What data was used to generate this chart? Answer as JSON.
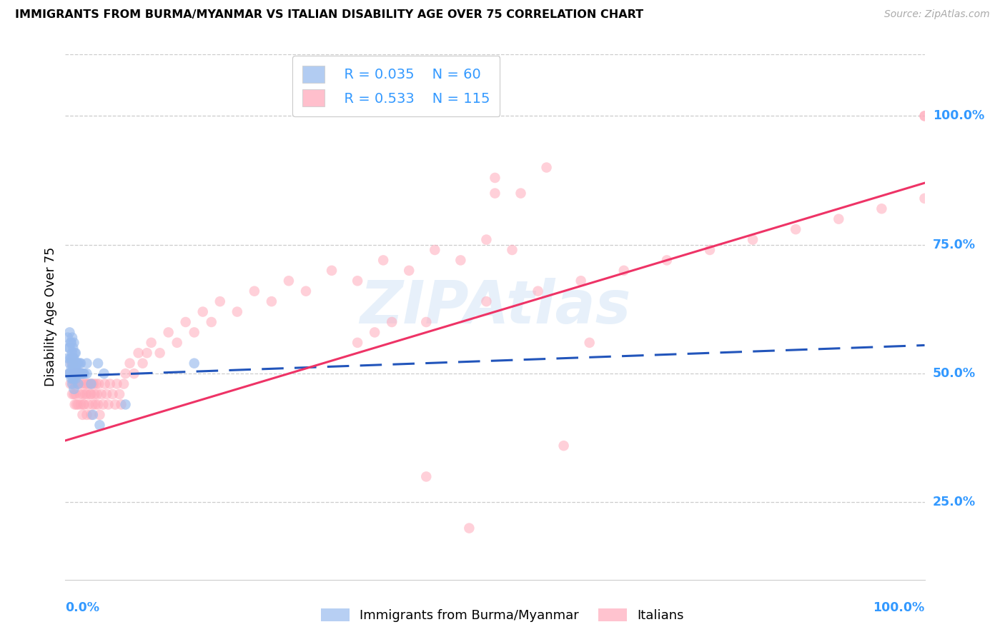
{
  "title": "IMMIGRANTS FROM BURMA/MYANMAR VS ITALIAN DISABILITY AGE OVER 75 CORRELATION CHART",
  "source": "Source: ZipAtlas.com",
  "ylabel": "Disability Age Over 75",
  "legend_r1": "R = 0.035",
  "legend_n1": "N = 60",
  "legend_r2": "R = 0.533",
  "legend_n2": "N = 115",
  "blue_color": "#99BBEE",
  "pink_color": "#FFAABB",
  "blue_line_color": "#2255BB",
  "pink_line_color": "#EE3366",
  "right_axis_color": "#3399FF",
  "ytick_values": [
    0.25,
    0.5,
    0.75,
    1.0
  ],
  "xlim": [
    0.0,
    1.0
  ],
  "ylim": [
    0.1,
    1.12
  ],
  "blue_x": [
    0.003,
    0.003,
    0.004,
    0.004,
    0.005,
    0.005,
    0.005,
    0.005,
    0.006,
    0.006,
    0.006,
    0.007,
    0.007,
    0.007,
    0.007,
    0.008,
    0.008,
    0.008,
    0.008,
    0.008,
    0.009,
    0.009,
    0.009,
    0.009,
    0.01,
    0.01,
    0.01,
    0.01,
    0.01,
    0.011,
    0.011,
    0.011,
    0.012,
    0.012,
    0.012,
    0.013,
    0.013,
    0.014,
    0.014,
    0.015,
    0.015,
    0.015,
    0.016,
    0.017,
    0.017,
    0.018,
    0.018,
    0.019,
    0.02,
    0.021,
    0.022,
    0.025,
    0.025,
    0.03,
    0.032,
    0.038,
    0.04,
    0.045,
    0.07,
    0.15
  ],
  "blue_y": [
    0.53,
    0.57,
    0.5,
    0.55,
    0.5,
    0.52,
    0.55,
    0.58,
    0.5,
    0.53,
    0.56,
    0.49,
    0.51,
    0.53,
    0.56,
    0.48,
    0.5,
    0.52,
    0.54,
    0.57,
    0.49,
    0.51,
    0.53,
    0.55,
    0.47,
    0.49,
    0.51,
    0.53,
    0.56,
    0.5,
    0.52,
    0.54,
    0.49,
    0.51,
    0.54,
    0.5,
    0.52,
    0.5,
    0.52,
    0.48,
    0.5,
    0.52,
    0.5,
    0.5,
    0.52,
    0.5,
    0.52,
    0.5,
    0.5,
    0.5,
    0.5,
    0.5,
    0.52,
    0.48,
    0.42,
    0.52,
    0.4,
    0.5,
    0.44,
    0.52
  ],
  "pink_x": [
    0.005,
    0.006,
    0.007,
    0.008,
    0.008,
    0.009,
    0.009,
    0.01,
    0.01,
    0.011,
    0.011,
    0.012,
    0.012,
    0.013,
    0.013,
    0.014,
    0.015,
    0.015,
    0.016,
    0.017,
    0.017,
    0.018,
    0.018,
    0.019,
    0.02,
    0.02,
    0.02,
    0.021,
    0.022,
    0.022,
    0.023,
    0.024,
    0.025,
    0.025,
    0.026,
    0.027,
    0.028,
    0.029,
    0.03,
    0.03,
    0.031,
    0.032,
    0.033,
    0.034,
    0.035,
    0.036,
    0.037,
    0.038,
    0.039,
    0.04,
    0.042,
    0.044,
    0.046,
    0.048,
    0.05,
    0.052,
    0.055,
    0.058,
    0.06,
    0.063,
    0.065,
    0.068,
    0.07,
    0.075,
    0.08,
    0.085,
    0.09,
    0.095,
    0.1,
    0.11,
    0.12,
    0.13,
    0.14,
    0.15,
    0.16,
    0.17,
    0.18,
    0.2,
    0.22,
    0.24,
    0.26,
    0.28,
    0.31,
    0.34,
    0.37,
    0.4,
    0.43,
    0.46,
    0.49,
    0.52,
    0.42,
    0.34,
    0.36,
    0.38,
    0.49,
    0.55,
    0.6,
    0.65,
    0.7,
    0.75,
    0.8,
    0.85,
    0.9,
    0.95,
    1.0,
    1.0,
    1.0,
    0.5,
    0.42,
    0.5,
    0.53,
    0.56,
    0.58,
    0.61,
    0.47
  ],
  "pink_y": [
    0.5,
    0.48,
    0.52,
    0.46,
    0.5,
    0.48,
    0.52,
    0.46,
    0.5,
    0.44,
    0.48,
    0.46,
    0.5,
    0.44,
    0.48,
    0.5,
    0.44,
    0.48,
    0.5,
    0.46,
    0.5,
    0.44,
    0.48,
    0.5,
    0.42,
    0.46,
    0.5,
    0.44,
    0.44,
    0.48,
    0.46,
    0.48,
    0.42,
    0.46,
    0.48,
    0.44,
    0.48,
    0.46,
    0.42,
    0.46,
    0.48,
    0.44,
    0.48,
    0.46,
    0.44,
    0.48,
    0.46,
    0.44,
    0.48,
    0.42,
    0.46,
    0.44,
    0.48,
    0.46,
    0.44,
    0.48,
    0.46,
    0.44,
    0.48,
    0.46,
    0.44,
    0.48,
    0.5,
    0.52,
    0.5,
    0.54,
    0.52,
    0.54,
    0.56,
    0.54,
    0.58,
    0.56,
    0.6,
    0.58,
    0.62,
    0.6,
    0.64,
    0.62,
    0.66,
    0.64,
    0.68,
    0.66,
    0.7,
    0.68,
    0.72,
    0.7,
    0.74,
    0.72,
    0.76,
    0.74,
    0.6,
    0.56,
    0.58,
    0.6,
    0.64,
    0.66,
    0.68,
    0.7,
    0.72,
    0.74,
    0.76,
    0.78,
    0.8,
    0.82,
    0.84,
    1.0,
    1.0,
    0.85,
    0.3,
    0.88,
    0.85,
    0.9,
    0.36,
    0.56,
    0.2
  ],
  "blue_trend_start_x": 0.0,
  "blue_trend_start_y": 0.495,
  "blue_trend_end_x": 1.0,
  "blue_trend_end_y": 0.555,
  "pink_trend_start_x": 0.0,
  "pink_trend_start_y": 0.37,
  "pink_trend_end_x": 1.0,
  "pink_trend_end_y": 0.87,
  "grid_color": "#cccccc",
  "background_color": "#ffffff",
  "watermark_text": "ZIPAtlas",
  "watermark_color": "#aaccee",
  "watermark_alpha": 0.28
}
